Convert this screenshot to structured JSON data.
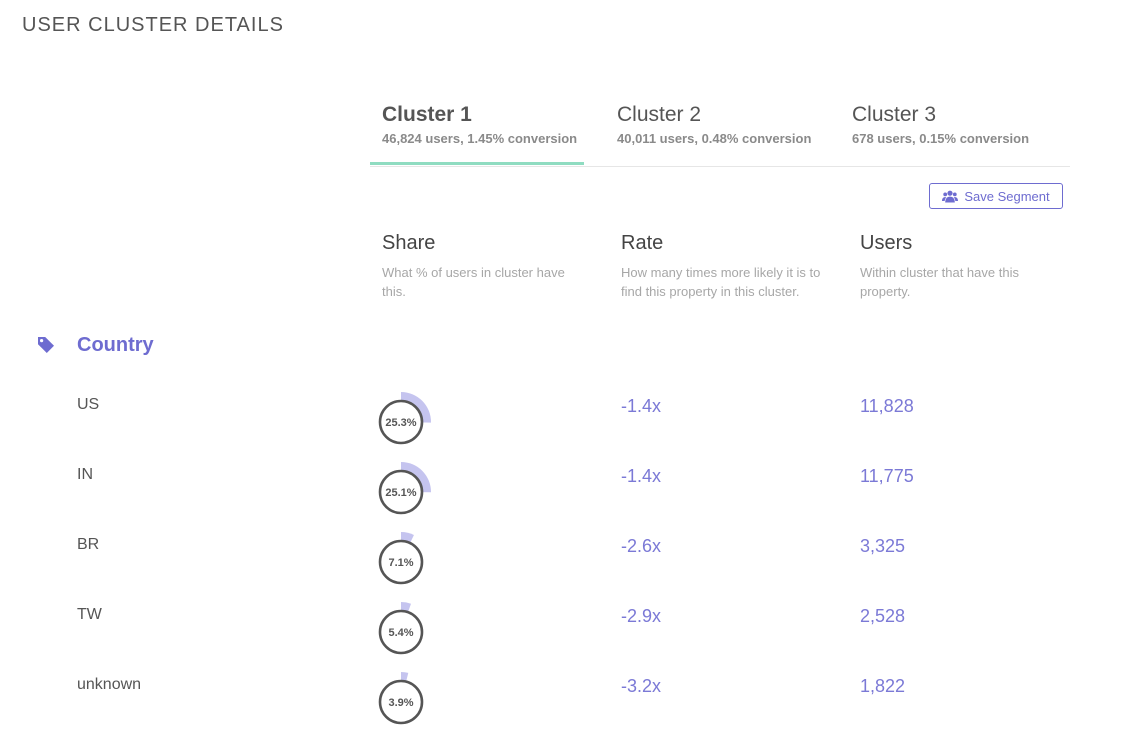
{
  "page_title": "USER CLUSTER DETAILS",
  "tabs": [
    {
      "title": "Cluster 1",
      "subtitle": "46,824 users, 1.45% conversion",
      "active": true
    },
    {
      "title": "Cluster 2",
      "subtitle": "40,011 users, 0.48% conversion",
      "active": false
    },
    {
      "title": "Cluster 3",
      "subtitle": "678 users, 0.15% conversion",
      "active": false
    }
  ],
  "save_button": {
    "label": "Save Segment",
    "icon": "users-icon"
  },
  "columns": {
    "share": {
      "title": "Share",
      "description": "What % of users in cluster have this."
    },
    "rate": {
      "title": "Rate",
      "description": "How many times more likely it is to find this property in this cluster."
    },
    "users": {
      "title": "Users",
      "description": "Within cluster that have this property."
    }
  },
  "category": {
    "title": "Country",
    "icon": "tag-icon"
  },
  "rows": [
    {
      "label": "US",
      "share": "25.3%",
      "share_value": 25.3,
      "rate": "-1.4x",
      "users": "11,828"
    },
    {
      "label": "IN",
      "share": "25.1%",
      "share_value": 25.1,
      "rate": "-1.4x",
      "users": "11,775"
    },
    {
      "label": "BR",
      "share": "7.1%",
      "share_value": 7.1,
      "rate": "-2.6x",
      "users": "3,325"
    },
    {
      "label": "TW",
      "share": "5.4%",
      "share_value": 5.4,
      "rate": "-2.9x",
      "users": "2,528"
    },
    {
      "label": "unknown",
      "share": "3.9%",
      "share_value": 3.9,
      "rate": "-3.2x",
      "users": "1,822"
    }
  ],
  "colors": {
    "accent": "#6e6cd0",
    "tab_underline": "#8fdcc1",
    "gauge_fill": "#c5c4ef",
    "gauge_ring": "#555555"
  }
}
